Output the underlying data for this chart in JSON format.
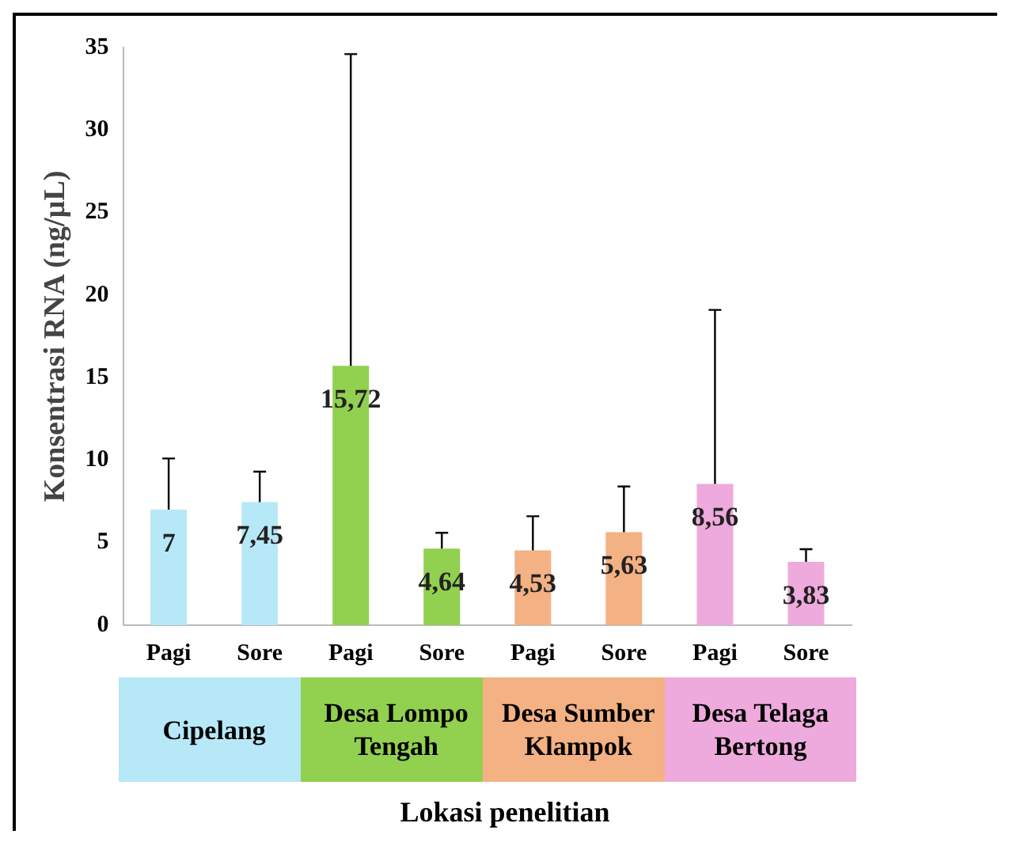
{
  "chart_data": {
    "type": "bar",
    "ylabel": "Konsentrasi RNA (ng/µL)",
    "xlabel": "Lokasi penelitian",
    "categories": [
      "Pagi",
      "Sore",
      "Pagi",
      "Sore",
      "Pagi",
      "Sore",
      "Pagi",
      "Sore"
    ],
    "values": [
      7,
      7.45,
      15.72,
      4.64,
      4.53,
      5.63,
      8.56,
      3.83
    ],
    "value_labels": [
      "7",
      "7,45",
      "15,72",
      "4,64",
      "4,53",
      "5,63",
      "8,56",
      "3,83"
    ],
    "errors": [
      [
        7,
        10.1
      ],
      [
        7.45,
        9.3
      ],
      [
        15.72,
        34.6
      ],
      [
        4.64,
        5.6
      ],
      [
        4.53,
        6.6
      ],
      [
        5.63,
        8.4
      ],
      [
        8.56,
        19.1
      ],
      [
        3.83,
        4.6
      ]
    ],
    "colors": [
      "#b7e8f7",
      "#b7e8f7",
      "#92d050",
      "#92d050",
      "#f4b183",
      "#f4b183",
      "#eeaadd",
      "#eeaadd"
    ],
    "annotations": [
      "Cipelang",
      "Desa Lompo Tengah",
      "Desa Sumber Klampok",
      "Desa Telaga Bertong"
    ],
    "ylim": [
      0,
      35
    ],
    "yticks": [
      0,
      5,
      10,
      15,
      20,
      25,
      30,
      35
    ],
    "grid": false,
    "legend": false
  }
}
